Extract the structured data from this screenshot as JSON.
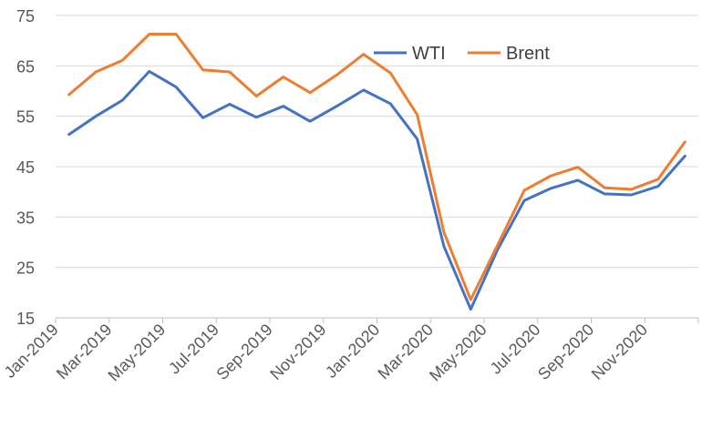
{
  "chart_data": {
    "type": "line",
    "title": "",
    "xlabel": "",
    "ylabel": "",
    "ylim": [
      15,
      75
    ],
    "yticks": [
      15,
      25,
      35,
      45,
      55,
      65,
      75
    ],
    "grid": "horizontal",
    "legend": "top-right",
    "x": [
      "Jan-2019",
      "Feb-2019",
      "Mar-2019",
      "Apr-2019",
      "May-2019",
      "Jun-2019",
      "Jul-2019",
      "Aug-2019",
      "Sep-2019",
      "Oct-2019",
      "Nov-2019",
      "Dec-2019",
      "Jan-2020",
      "Feb-2020",
      "Mar-2020",
      "Apr-2020",
      "May-2020",
      "Jun-2020",
      "Jul-2020",
      "Aug-2020",
      "Sep-2020",
      "Oct-2020",
      "Nov-2020",
      "Dec-2020"
    ],
    "xtick_labels": [
      "Jan-2019",
      "Mar-2019",
      "May-2019",
      "Jul-2019",
      "Sep-2019",
      "Nov-2019",
      "Jan-2020",
      "Mar-2020",
      "May-2020",
      "Jul-2020",
      "Sep-2020",
      "Nov-2020"
    ],
    "series": [
      {
        "name": "WTI",
        "color": "#4472C4",
        "values": [
          51.4,
          55.0,
          58.2,
          63.9,
          60.8,
          54.7,
          57.4,
          54.8,
          57.0,
          54.0,
          57.0,
          60.2,
          57.5,
          50.5,
          29.2,
          16.7,
          28.5,
          38.3,
          40.7,
          42.3,
          39.6,
          39.4,
          41.1,
          47.1
        ]
      },
      {
        "name": "Brent",
        "color": "#ED7D31",
        "values": [
          59.3,
          63.8,
          66.1,
          71.3,
          71.3,
          64.2,
          63.8,
          59.0,
          62.8,
          59.7,
          63.2,
          67.3,
          63.6,
          55.3,
          32.0,
          18.6,
          29.4,
          40.3,
          43.2,
          44.9,
          40.8,
          40.5,
          42.5,
          49.9
        ]
      }
    ]
  }
}
